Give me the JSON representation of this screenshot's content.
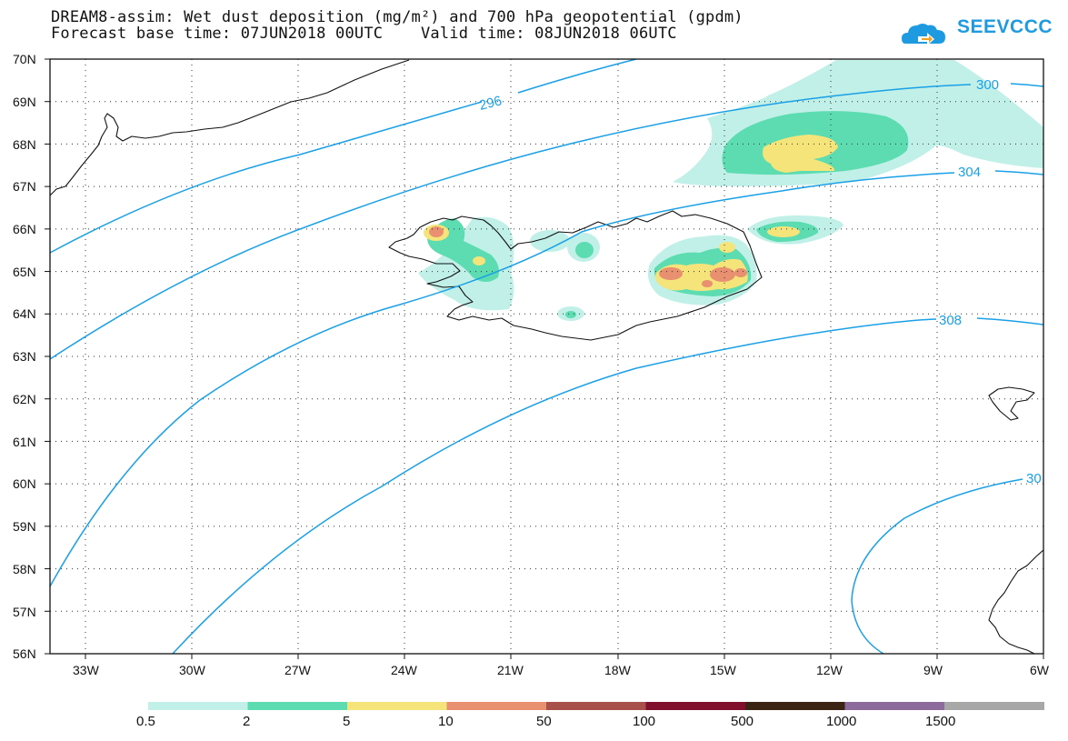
{
  "header": {
    "line1": "DREAM8-assim: Wet dust deposition (mg/m²) and 700 hPa geopotential (gpdm)",
    "line2": "Forecast base time: 07JUN2018 00UTC    Valid time: 08JUN2018 06UTC"
  },
  "logo": {
    "text": "SEEVCCC",
    "icon": "cloud-logo-icon",
    "color": "#1e9be0"
  },
  "map": {
    "lat_labels": [
      "70N",
      "69N",
      "68N",
      "67N",
      "66N",
      "65N",
      "64N",
      "63N",
      "62N",
      "61N",
      "60N",
      "59N",
      "58N",
      "57N",
      "56N"
    ],
    "lon_labels": [
      "33W",
      "30W",
      "27W",
      "24W",
      "21W",
      "18W",
      "15W",
      "12W",
      "9W",
      "6W"
    ],
    "contour_labels": [
      "296",
      "300",
      "304",
      "308",
      "30"
    ],
    "contour_color": "#1aa0e6",
    "grid": "dotted"
  },
  "colorbar": {
    "ticks": [
      "0.5",
      "2",
      "5",
      "10",
      "50",
      "100",
      "500",
      "1000",
      "1500"
    ],
    "colors": [
      "#c0f0e8",
      "#5cdcb0",
      "#f4e47a",
      "#e89070",
      "#a8504a",
      "#80102c",
      "#3c2414",
      "#8c6a9c",
      "#a8a8a8"
    ]
  }
}
